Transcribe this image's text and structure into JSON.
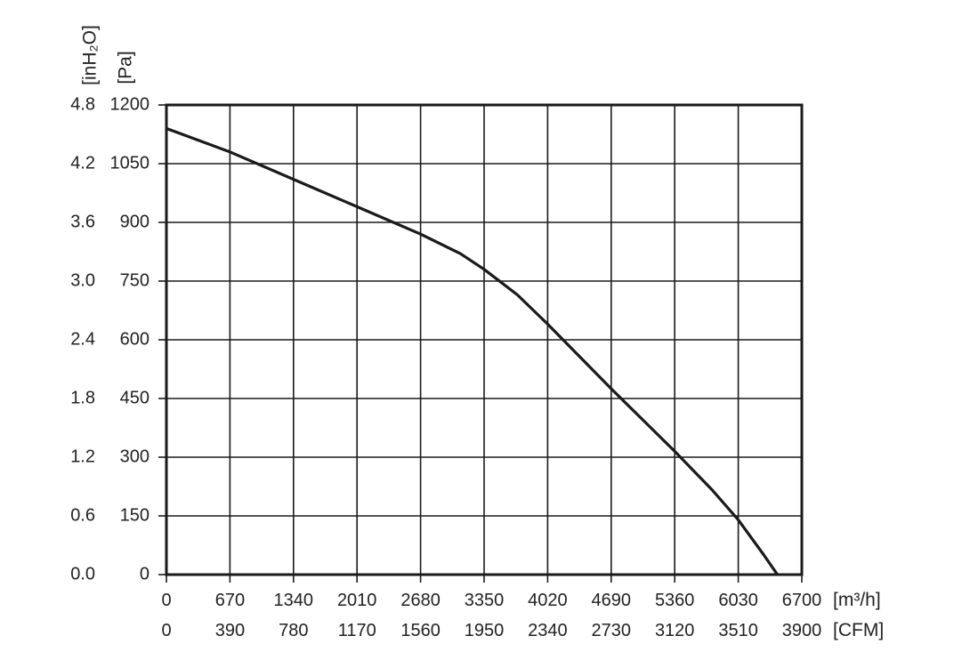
{
  "chart_data": {
    "type": "line",
    "title": "",
    "x_unit_primary": "[m³/h]",
    "x_unit_secondary": "[CFM]",
    "y_unit_primary": "[Pa]",
    "y_unit_secondary": "[inH₂O]",
    "x_ticks_primary": [
      "0",
      "670",
      "1340",
      "2010",
      "2680",
      "3350",
      "4020",
      "4690",
      "5360",
      "6030",
      "6700"
    ],
    "x_ticks_secondary": [
      "0",
      "390",
      "780",
      "1170",
      "1560",
      "1950",
      "2340",
      "2730",
      "3120",
      "3510",
      "3900"
    ],
    "y_ticks_primary": [
      "0",
      "150",
      "300",
      "450",
      "600",
      "750",
      "900",
      "1050",
      "1200"
    ],
    "y_ticks_secondary": [
      "0.0",
      "0.6",
      "1.2",
      "1.8",
      "2.4",
      "3.0",
      "3.6",
      "4.2",
      "4.8"
    ],
    "xlim": [
      0,
      6700
    ],
    "ylim": [
      0,
      1200
    ],
    "grid": true,
    "line_color": "#1a1a1a",
    "series": [
      {
        "x": [
          0,
          670,
          1340,
          2010,
          2680,
          3100,
          3350,
          3700,
          4020,
          4690,
          5360,
          5760,
          6030,
          6300,
          6500,
          6700
        ],
        "y": [
          1140,
          1080,
          1010,
          940,
          870,
          820,
          780,
          715,
          640,
          475,
          315,
          215,
          140,
          50,
          -20,
          -95
        ]
      }
    ]
  }
}
